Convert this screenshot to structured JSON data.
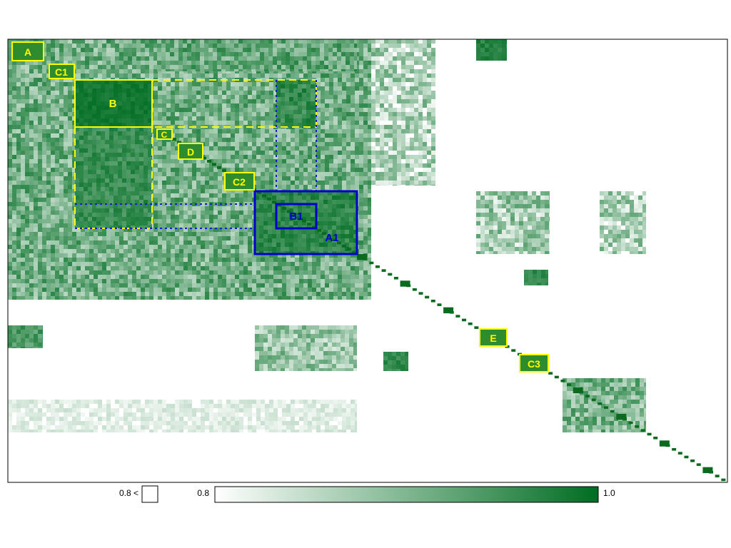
{
  "chart_data": {
    "type": "heatmap",
    "title": "",
    "xlabel": "",
    "ylabel": "",
    "value_range": [
      0.8,
      1.0
    ],
    "colors": {
      "low": "#ffffff",
      "high": "#006d22",
      "yellow_box": "#ffff00",
      "yellow_fill": "#2e8b2e",
      "blue_box": "#0000cc",
      "diagonal": "#0a6b1e"
    },
    "colorbar": {
      "below_threshold_label": "0.8 <",
      "min_label": "0.8",
      "max_label": "1.0"
    },
    "annotations": [
      {
        "label": "A",
        "color": "yellow",
        "style": "label-box"
      },
      {
        "label": "C1",
        "color": "yellow",
        "style": "label-box"
      },
      {
        "label": "B",
        "color": "yellow",
        "style": "solid-box"
      },
      {
        "label": "C",
        "color": "yellow",
        "style": "label-box"
      },
      {
        "label": "D",
        "color": "yellow",
        "style": "label-box"
      },
      {
        "label": "C2",
        "color": "yellow",
        "style": "label-box"
      },
      {
        "label": "B1",
        "color": "blue",
        "style": "solid-box"
      },
      {
        "label": "A1",
        "color": "blue",
        "style": "solid-box"
      },
      {
        "label": "E",
        "color": "yellow",
        "style": "label-box"
      },
      {
        "label": "C3",
        "color": "yellow",
        "style": "label-box"
      }
    ]
  }
}
